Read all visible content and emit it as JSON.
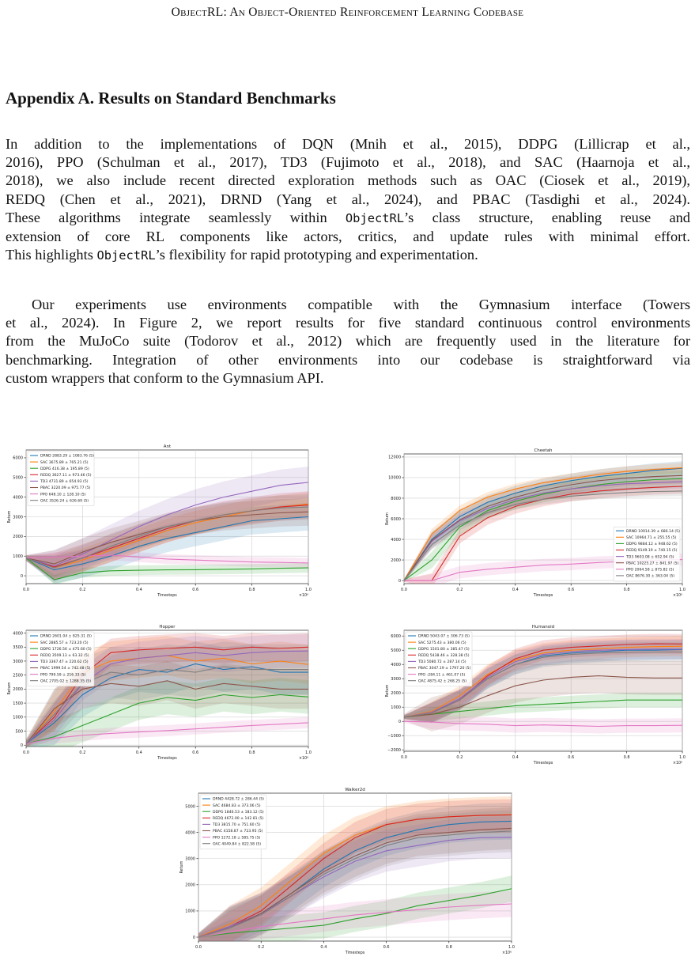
{
  "header": {
    "running_title": "ObjectRL: An Object-Oriented Reinforcement Learning Codebase"
  },
  "section": {
    "title": "Appendix A. Results on Standard Benchmarks"
  },
  "paragraph1": [
    [
      "In addition to the implementations of DQN (Mnih et al., 2015), DDPG (Lillicrap et al.,"
    ],
    [
      "2016), PPO (Schulman et al., 2017), TD3 (Fujimoto et al., 2018), and SAC (Haarnoja et al.,"
    ],
    [
      "2018), we also include recent directed exploration methods such as OAC (Ciosek et al., 2019),"
    ],
    [
      "REDQ (Chen et al., 2021), DRND (Yang et al., 2024), and PBAC (Tasdighi et al., 2024)."
    ],
    [
      "These algorithms integrate seamlessly within ",
      "ObjectRL",
      "’s class structure, enabling reuse and"
    ],
    [
      "extension of core RL components like actors, critics, and update rules with minimal effort."
    ],
    [
      "This highlights ",
      "ObjectRL",
      "’s flexibility for rapid prototyping and experimentation."
    ]
  ],
  "paragraph2": [
    "Our experiments use environments compatible with the Gymnasium interface (Towers",
    "et al., 2024). In Figure 2, we report results for five standard continuous control environments",
    "from the MuJoCo suite (Todorov et al., 2012) which are frequently used in the literature for",
    "benchmarking. Integration of other environments into our codebase is straightforward via",
    "custom wrappers that conform to the Gymnasium API."
  ],
  "series_colors": {
    "DRND": "#1f77b4",
    "SAC": "#ff7f0e",
    "DDPG": "#2ca02c",
    "REDQ": "#d62728",
    "TD3": "#9467bd",
    "PBAC": "#8c564b",
    "PPO": "#e377c2",
    "OAC": "#7f7f7f"
  },
  "chart_data": [
    {
      "type": "line",
      "title": "Ant",
      "xlabel": "Timesteps",
      "ylabel": "Return",
      "x_multiplier_label": "×10⁶",
      "xlim": [
        0,
        1
      ],
      "ylim": [
        -400,
        6400
      ],
      "xticks": [
        "0.0",
        "0.2",
        "0.4",
        "0.6",
        "0.8",
        "1.0"
      ],
      "yticks": [
        0,
        1000,
        2000,
        3000,
        4000,
        5000,
        6000
      ],
      "grid": true,
      "legend": "top-left",
      "series": [
        {
          "name": "DRND",
          "label": "DRND 2883.29 ± 1083.76 (5)",
          "y": [
            900,
            300,
            600,
            1000,
            1500,
            1900,
            2200,
            2500,
            2800,
            2900,
            3000
          ],
          "band": 700
        },
        {
          "name": "SAC",
          "label": "SAC 3675.89 ± 765.21 (5)",
          "y": [
            900,
            400,
            800,
            1300,
            1800,
            2300,
            2700,
            3000,
            3300,
            3500,
            3650
          ],
          "band": 600
        },
        {
          "name": "DDPG",
          "label": "DDPG 416.38 ± 195.89 (5)",
          "y": [
            900,
            -200,
            150,
            250,
            280,
            300,
            310,
            330,
            350,
            380,
            400
          ],
          "band": 250
        },
        {
          "name": "REDQ",
          "label": "REDQ 3627.11 ± 973.46 (5)",
          "y": [
            900,
            450,
            900,
            1400,
            1900,
            2400,
            2800,
            3100,
            3300,
            3500,
            3600
          ],
          "band": 700
        },
        {
          "name": "TD3",
          "label": "TD3 4731.89 ± 654.93 (5)",
          "y": [
            900,
            500,
            1100,
            1800,
            2500,
            3100,
            3600,
            4000,
            4300,
            4600,
            4750
          ],
          "band": 800
        },
        {
          "name": "PBAC",
          "label": "PBAC 3220.09 ± 975.77 (5)",
          "y": [
            900,
            600,
            1200,
            1700,
            2100,
            2500,
            2800,
            3000,
            3100,
            3200,
            3250
          ],
          "band": 700
        },
        {
          "name": "PPO",
          "label": "PPO 648.10 ± 128.10 (5)",
          "y": [
            900,
            950,
            1000,
            1050,
            950,
            850,
            800,
            750,
            700,
            680,
            650
          ],
          "band": 250
        },
        {
          "name": "OAC",
          "label": "OAC 3526.24 ± 626.69 (5)",
          "y": [
            900,
            400,
            900,
            1500,
            2000,
            2500,
            2800,
            3100,
            3300,
            3450,
            3500
          ],
          "band": 650
        }
      ]
    },
    {
      "type": "line",
      "title": "Cheetah",
      "xlabel": "Timesteps",
      "ylabel": "Return",
      "x_multiplier_label": "×10⁶",
      "xlim": [
        0,
        1
      ],
      "ylim": [
        -300,
        12300
      ],
      "xticks": [
        "0.0",
        "0.2",
        "0.4",
        "0.6",
        "0.8",
        "1.0"
      ],
      "yticks": [
        0,
        2000,
        4000,
        6000,
        8000,
        10000,
        12000
      ],
      "grid": true,
      "legend": "bottom-right",
      "series": [
        {
          "name": "DRND",
          "label": "DRND 10914.39 ± 686.14 (5)",
          "y": [
            0,
            4000,
            6200,
            7600,
            8500,
            9200,
            9700,
            10100,
            10400,
            10700,
            10900
          ],
          "band": 700
        },
        {
          "name": "SAC",
          "label": "SAC 10964.71 ± 255.55 (5)",
          "y": [
            0,
            4500,
            6800,
            8100,
            8900,
            9500,
            9900,
            10300,
            10600,
            10800,
            10950
          ],
          "band": 500
        },
        {
          "name": "DDPG",
          "label": "DDPG 9884.12 ± 948.62 (5)",
          "y": [
            0,
            2000,
            5200,
            6800,
            7700,
            8400,
            8900,
            9300,
            9600,
            9800,
            9900
          ],
          "band": 800
        },
        {
          "name": "REDQ",
          "label": "REDQ 9149.19 ± 740.15 (5)",
          "y": [
            0,
            0,
            4300,
            6100,
            7200,
            7900,
            8400,
            8700,
            8900,
            9050,
            9150
          ],
          "band": 700
        },
        {
          "name": "TD3",
          "label": "TD3 9603.08 ± 652.94 (5)",
          "y": [
            0,
            3800,
            5800,
            7000,
            7900,
            8500,
            8900,
            9200,
            9400,
            9500,
            9600
          ],
          "band": 650
        },
        {
          "name": "PBAC",
          "label": "PBAC 10225.27 ± 841.97 (5)",
          "y": [
            0,
            3900,
            5900,
            7200,
            8100,
            8800,
            9300,
            9700,
            9950,
            10100,
            10200
          ],
          "band": 800
        },
        {
          "name": "PPO",
          "label": "PPO 2064.58 ± 875.82 (5)",
          "y": [
            0,
            0,
            800,
            1100,
            1300,
            1500,
            1600,
            1750,
            1850,
            1950,
            2050
          ],
          "band": 600
        },
        {
          "name": "OAC",
          "label": "OAC 8676.30 ± 363.04 (5)",
          "y": [
            0,
            3500,
            5400,
            6600,
            7400,
            7900,
            8200,
            8400,
            8550,
            8650,
            8700
          ],
          "band": 500
        }
      ]
    },
    {
      "type": "line",
      "title": "Hopper",
      "xlabel": "Timesteps",
      "ylabel": "Return",
      "x_multiplier_label": "×10⁶",
      "xlim": [
        0,
        1
      ],
      "ylim": [
        -50,
        4100
      ],
      "xticks": [
        "0.0",
        "0.2",
        "0.4",
        "0.6",
        "0.8",
        "1.0"
      ],
      "yticks": [
        0,
        500,
        1000,
        1500,
        2000,
        2500,
        3000,
        3500,
        4000
      ],
      "grid": true,
      "legend": "top-left",
      "series": [
        {
          "name": "DRND",
          "label": "DRND 2601.04 ± 825.31 (5)",
          "y": [
            50,
            800,
            1800,
            2400,
            2700,
            2600,
            2900,
            2700,
            2800,
            2600,
            2600
          ],
          "band": 800
        },
        {
          "name": "SAC",
          "label": "SAC 2885.57 ± 723.20 (5)",
          "y": [
            50,
            1200,
            2600,
            3000,
            3100,
            3200,
            3000,
            3100,
            2900,
            3000,
            2880
          ],
          "band": 700
        },
        {
          "name": "DDPG",
          "label": "DDPG 1726.56 ± 475.60 (5)",
          "y": [
            50,
            300,
            700,
            1100,
            1500,
            1700,
            1600,
            1800,
            1700,
            1800,
            1720
          ],
          "band": 600
        },
        {
          "name": "REDQ",
          "label": "REDQ 3509.13 ± 63.32 (5)",
          "y": [
            50,
            1000,
            2500,
            3300,
            3400,
            3450,
            3500,
            3400,
            3500,
            3450,
            3500
          ],
          "band": 500
        },
        {
          "name": "TD3",
          "label": "TD3 3367.47 ± 220.62 (5)",
          "y": [
            50,
            900,
            2200,
            2900,
            3100,
            3200,
            3300,
            3200,
            3300,
            3350,
            3360
          ],
          "band": 600
        },
        {
          "name": "PBAC",
          "label": "PBAC 1999.54 ± 742.48 (5)",
          "y": [
            50,
            1300,
            2000,
            2200,
            2100,
            2300,
            2000,
            2200,
            2100,
            2000,
            2000
          ],
          "band": 700
        },
        {
          "name": "PPO",
          "label": "PPO 799.59 ± 216.33 (5)",
          "y": [
            50,
            250,
            350,
            420,
            470,
            520,
            580,
            640,
            700,
            750,
            800
          ],
          "band": 200
        },
        {
          "name": "OAC",
          "label": "OAC 2705.02 ± 1288.35 (5)",
          "y": [
            50,
            1100,
            2200,
            2600,
            2500,
            2700,
            2600,
            2800,
            2700,
            2700,
            2700
          ],
          "band": 900
        }
      ]
    },
    {
      "type": "line",
      "title": "Humanoid",
      "xlabel": "Timesteps",
      "ylabel": "Return",
      "x_multiplier_label": "×10⁶",
      "xlim": [
        0,
        1
      ],
      "ylim": [
        -2100,
        6400
      ],
      "xticks": [
        "0.0",
        "0.2",
        "0.4",
        "0.6",
        "0.8",
        "1.0"
      ],
      "yticks": [
        -2000,
        -1000,
        0,
        1000,
        2000,
        3000,
        4000,
        5000,
        6000
      ],
      "grid": true,
      "legend": "top-left",
      "series": [
        {
          "name": "DRND",
          "label": "DRND 5043.07 ± 306.73 (5)",
          "y": [
            300,
            600,
            1500,
            3000,
            4000,
            4600,
            4800,
            4900,
            5000,
            5000,
            5050
          ],
          "band": 700
        },
        {
          "name": "SAC",
          "label": "SAC 5275.43 ± 380.06 (5)",
          "y": [
            300,
            700,
            1800,
            3300,
            4300,
            4800,
            5000,
            5100,
            5200,
            5250,
            5280
          ],
          "band": 700
        },
        {
          "name": "DDPG",
          "label": "DDPG 1501.80 ± 385.47 (5)",
          "y": [
            300,
            500,
            700,
            900,
            1100,
            1200,
            1300,
            1400,
            1500,
            1500,
            1500
          ],
          "band": 500
        },
        {
          "name": "REDQ",
          "label": "REDQ 5438.46 ± 328.38 (5)",
          "y": [
            300,
            600,
            1500,
            3200,
            4400,
            5000,
            5200,
            5300,
            5400,
            5450,
            5440
          ],
          "band": 700
        },
        {
          "name": "TD3",
          "label": "TD3 5080.72 ± 287.14 (5)",
          "y": [
            300,
            650,
            1600,
            3100,
            4200,
            4700,
            4900,
            5000,
            5050,
            5080,
            5080
          ],
          "band": 700
        },
        {
          "name": "PBAC",
          "label": "PBAC 3047.19 ± 1797.20 (5)",
          "y": [
            300,
            500,
            1000,
            1800,
            2500,
            2900,
            3100,
            3200,
            3100,
            3050,
            3050
          ],
          "band": 1200
        },
        {
          "name": "PPO",
          "label": "PPO -284.11 ± 461.07 (5)",
          "y": [
            0,
            -50,
            -150,
            -200,
            -300,
            -250,
            -300,
            -350,
            -300,
            -300,
            -280
          ],
          "band": 500
        },
        {
          "name": "OAC",
          "label": "OAC 4875.42 ± 268.25 (5)",
          "y": [
            300,
            600,
            1500,
            3000,
            4000,
            4500,
            4700,
            4800,
            4850,
            4870,
            4880
          ],
          "band": 700
        }
      ]
    },
    {
      "type": "line",
      "title": "Walker2d",
      "xlabel": "Timesteps",
      "ylabel": "Return",
      "x_multiplier_label": "×10⁶",
      "xlim": [
        0,
        1
      ],
      "ylim": [
        -150,
        5500
      ],
      "xticks": [
        "0.0",
        "0.2",
        "0.4",
        "0.6",
        "0.8",
        "1.0"
      ],
      "yticks": [
        0,
        1000,
        2000,
        3000,
        4000,
        5000
      ],
      "grid": true,
      "legend": "top-left",
      "series": [
        {
          "name": "DRND",
          "label": "DRND 4428.72 ± 286.44 (5)",
          "y": [
            0,
            400,
            900,
            1700,
            2600,
            3300,
            3800,
            4100,
            4300,
            4400,
            4430
          ],
          "band": 700
        },
        {
          "name": "SAC",
          "label": "SAC 4684.83 ± 373.06 (5)",
          "y": [
            0,
            500,
            1200,
            2200,
            3200,
            3900,
            4300,
            4500,
            4600,
            4650,
            4680
          ],
          "band": 700
        },
        {
          "name": "DDPG",
          "label": "DDPG 1846.53 ± 183.12 (5)",
          "y": [
            0,
            150,
            250,
            350,
            450,
            700,
            900,
            1200,
            1400,
            1600,
            1850
          ],
          "band": 500
        },
        {
          "name": "REDQ",
          "label": "REDQ 4672.00 ± 142.81 (5)",
          "y": [
            0,
            400,
            1000,
            2000,
            3000,
            3800,
            4300,
            4500,
            4600,
            4650,
            4670
          ],
          "band": 600
        },
        {
          "name": "TD3",
          "label": "TD3 3815.70 ± 751.60 (5)",
          "y": [
            0,
            400,
            900,
            1600,
            2300,
            2900,
            3300,
            3500,
            3700,
            3800,
            3815
          ],
          "band": 800
        },
        {
          "name": "PBAC",
          "label": "PBAC 4158.87 ± 723.95 (5)",
          "y": [
            0,
            350,
            900,
            1700,
            2500,
            3100,
            3600,
            3900,
            4000,
            4100,
            4160
          ],
          "band": 800
        },
        {
          "name": "PPO",
          "label": "PPO 1272.18 ± 585.75 (5)",
          "y": [
            0,
            200,
            400,
            550,
            700,
            850,
            950,
            1050,
            1150,
            1220,
            1270
          ],
          "band": 500
        },
        {
          "name": "OAC",
          "label": "OAC 4049.84 ± 822.58 (5)",
          "y": [
            0,
            350,
            850,
            1600,
            2400,
            3000,
            3500,
            3800,
            3900,
            4000,
            4050
          ],
          "band": 800
        }
      ]
    }
  ]
}
